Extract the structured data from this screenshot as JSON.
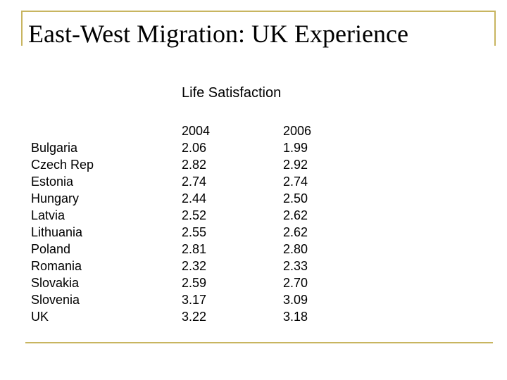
{
  "slide": {
    "title": "East-West Migration: UK Experience",
    "accent_color": "#c8b560"
  },
  "table": {
    "heading": "Life Satisfaction",
    "years": [
      "2004",
      "2006"
    ],
    "rows": [
      {
        "country": "Bulgaria",
        "v2004": "2.06",
        "v2006": "1.99"
      },
      {
        "country": "Czech Rep",
        "v2004": "2.82",
        "v2006": "2.92"
      },
      {
        "country": "Estonia",
        "v2004": "2.74",
        "v2006": "2.74"
      },
      {
        "country": "Hungary",
        "v2004": "2.44",
        "v2006": "2.50"
      },
      {
        "country": "Latvia",
        "v2004": "2.52",
        "v2006": "2.62"
      },
      {
        "country": "Lithuania",
        "v2004": "2.55",
        "v2006": "2.62"
      },
      {
        "country": "Poland",
        "v2004": "2.81",
        "v2006": "2.80"
      },
      {
        "country": "Romania",
        "v2004": "2.32",
        "v2006": "2.33"
      },
      {
        "country": "Slovakia",
        "v2004": "2.59",
        "v2006": "2.70"
      },
      {
        "country": "Slovenia",
        "v2004": "3.17",
        "v2006": "3.09"
      },
      {
        "country": "UK",
        "v2004": "3.22",
        "v2006": "3.18"
      }
    ]
  }
}
